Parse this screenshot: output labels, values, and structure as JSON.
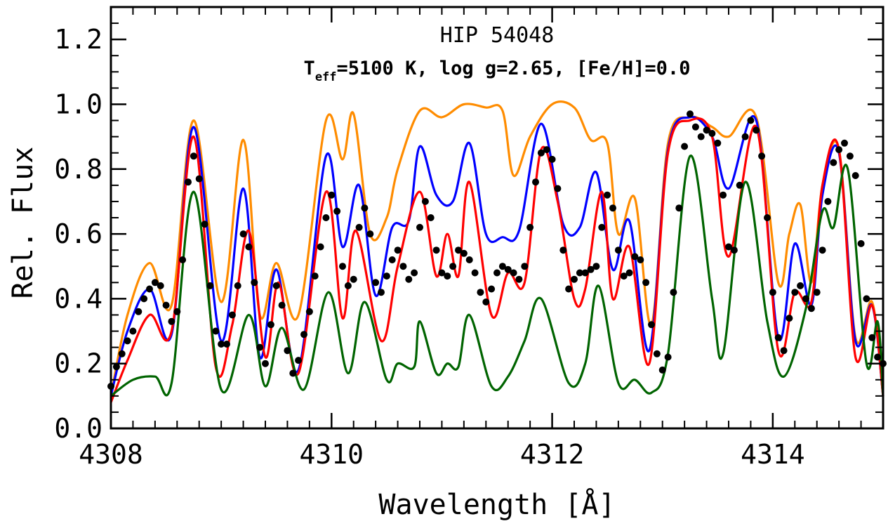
{
  "chart_data": {
    "type": "line",
    "title": "HIP 54048",
    "subtitle": {
      "t_main": "T",
      "t_sub": "eff",
      "rest": "=5100 K, log g=2.65, [Fe/H]=0.0"
    },
    "xlabel": "Wavelength [Å]",
    "ylabel": "Rel. Flux",
    "xlim": [
      4308,
      4315
    ],
    "ylim": [
      0.0,
      1.3
    ],
    "xticks": [
      4308,
      4310,
      4312,
      4314
    ],
    "xtick_labels": [
      "4308",
      "4310",
      "4312",
      "4314"
    ],
    "yticks": [
      0.0,
      0.2,
      0.4,
      0.6,
      0.8,
      1.0,
      1.2
    ],
    "ytick_labels": [
      "0.0",
      "0.2",
      "0.4",
      "0.6",
      "0.8",
      "1.0",
      "1.2"
    ],
    "grid": false,
    "colors": {
      "orange": "#ff8c00",
      "blue": "#0000ff",
      "red": "#ff0000",
      "green": "#006400",
      "observed": "#000000"
    },
    "series": [
      {
        "color": "orange",
        "x": [
          4308.0,
          4308.15,
          4308.35,
          4308.55,
          4308.75,
          4309.0,
          4309.2,
          4309.35,
          4309.5,
          4309.7,
          4309.95,
          4310.1,
          4310.2,
          4310.35,
          4310.5,
          4310.6,
          4310.8,
          4311.0,
          4311.2,
          4311.4,
          4311.55,
          4311.65,
          4311.8,
          4312.0,
          4312.2,
          4312.35,
          4312.5,
          4312.6,
          4312.75,
          4312.9,
          4313.05,
          4313.25,
          4313.45,
          4313.6,
          4313.85,
          4314.05,
          4314.15,
          4314.25,
          4314.35,
          4314.45,
          4314.6,
          4314.75,
          4314.9,
          4315.0
        ],
        "y": [
          0.1,
          0.35,
          0.51,
          0.38,
          0.95,
          0.39,
          0.89,
          0.35,
          0.51,
          0.35,
          0.95,
          0.83,
          0.97,
          0.6,
          0.65,
          0.8,
          0.98,
          0.96,
          1.0,
          0.99,
          0.98,
          0.78,
          0.9,
          1.0,
          0.99,
          0.89,
          0.88,
          0.6,
          0.71,
          0.32,
          0.88,
          0.96,
          0.93,
          0.9,
          0.96,
          0.45,
          0.6,
          0.69,
          0.45,
          0.75,
          0.86,
          0.28,
          0.39,
          0.1
        ]
      },
      {
        "color": "blue",
        "x": [
          4308.0,
          4308.15,
          4308.35,
          4308.55,
          4308.75,
          4309.0,
          4309.2,
          4309.35,
          4309.5,
          4309.7,
          4309.95,
          4310.1,
          4310.25,
          4310.4,
          4310.55,
          4310.7,
          4310.8,
          4310.95,
          4311.1,
          4311.25,
          4311.4,
          4311.55,
          4311.7,
          4311.9,
          4312.1,
          4312.25,
          4312.4,
          4312.55,
          4312.7,
          4312.88,
          4313.05,
          4313.25,
          4313.45,
          4313.6,
          4313.85,
          4314.05,
          4314.2,
          4314.35,
          4314.45,
          4314.6,
          4314.75,
          4314.9,
          4315.0
        ],
        "y": [
          0.1,
          0.3,
          0.43,
          0.29,
          0.93,
          0.27,
          0.74,
          0.22,
          0.49,
          0.18,
          0.84,
          0.56,
          0.75,
          0.41,
          0.62,
          0.64,
          0.87,
          0.72,
          0.7,
          0.88,
          0.6,
          0.59,
          0.61,
          0.94,
          0.63,
          0.62,
          0.79,
          0.49,
          0.64,
          0.24,
          0.86,
          0.96,
          0.9,
          0.74,
          0.95,
          0.28,
          0.57,
          0.38,
          0.72,
          0.85,
          0.27,
          0.38,
          0.1
        ]
      },
      {
        "color": "red",
        "x": [
          4308.0,
          4308.15,
          4308.35,
          4308.55,
          4308.75,
          4308.95,
          4309.1,
          4309.25,
          4309.4,
          4309.52,
          4309.7,
          4309.95,
          4310.1,
          4310.22,
          4310.45,
          4310.6,
          4310.8,
          4310.95,
          4311.05,
          4311.15,
          4311.25,
          4311.45,
          4311.6,
          4311.75,
          4311.9,
          4312.05,
          4312.2,
          4312.3,
          4312.45,
          4312.55,
          4312.7,
          4312.88,
          4313.05,
          4313.25,
          4313.45,
          4313.6,
          4313.85,
          4314.05,
          4314.2,
          4314.35,
          4314.45,
          4314.6,
          4314.75,
          4314.9,
          4315.0
        ],
        "y": [
          0.08,
          0.21,
          0.35,
          0.3,
          0.9,
          0.19,
          0.32,
          0.61,
          0.22,
          0.45,
          0.17,
          0.73,
          0.34,
          0.61,
          0.27,
          0.5,
          0.73,
          0.47,
          0.6,
          0.47,
          0.76,
          0.35,
          0.48,
          0.45,
          0.86,
          0.7,
          0.4,
          0.43,
          0.73,
          0.4,
          0.56,
          0.2,
          0.85,
          0.95,
          0.9,
          0.53,
          0.93,
          0.24,
          0.42,
          0.39,
          0.75,
          0.86,
          0.22,
          0.38,
          0.1
        ]
      },
      {
        "color": "green",
        "x": [
          4308.0,
          4308.2,
          4308.4,
          4308.55,
          4308.75,
          4309.0,
          4309.25,
          4309.4,
          4309.55,
          4309.75,
          4309.97,
          4310.15,
          4310.3,
          4310.5,
          4310.6,
          4310.75,
          4310.8,
          4310.95,
          4311.05,
          4311.15,
          4311.25,
          4311.45,
          4311.6,
          4311.75,
          4311.9,
          4312.15,
          4312.3,
          4312.42,
          4312.6,
          4312.75,
          4312.9,
          4313.05,
          4313.25,
          4313.45,
          4313.55,
          4313.75,
          4313.95,
          4314.1,
          4314.3,
          4314.45,
          4314.55,
          4314.68,
          4314.85,
          4314.95,
          4315.0
        ],
        "y": [
          0.1,
          0.15,
          0.16,
          0.14,
          0.73,
          0.12,
          0.35,
          0.13,
          0.31,
          0.12,
          0.42,
          0.17,
          0.39,
          0.15,
          0.2,
          0.19,
          0.33,
          0.17,
          0.2,
          0.19,
          0.35,
          0.13,
          0.16,
          0.27,
          0.4,
          0.14,
          0.2,
          0.44,
          0.14,
          0.15,
          0.11,
          0.23,
          0.84,
          0.4,
          0.23,
          0.76,
          0.33,
          0.16,
          0.37,
          0.67,
          0.62,
          0.8,
          0.2,
          0.33,
          0.1
        ]
      }
    ],
    "observed": {
      "color": "observed",
      "x": [
        4308.0,
        4308.05,
        4308.1,
        4308.15,
        4308.2,
        4308.25,
        4308.3,
        4308.35,
        4308.4,
        4308.45,
        4308.5,
        4308.55,
        4308.6,
        4308.65,
        4308.7,
        4308.75,
        4308.8,
        4308.85,
        4308.9,
        4308.95,
        4309.0,
        4309.05,
        4309.1,
        4309.15,
        4309.2,
        4309.25,
        4309.3,
        4309.35,
        4309.4,
        4309.45,
        4309.5,
        4309.55,
        4309.6,
        4309.65,
        4309.7,
        4309.75,
        4309.8,
        4309.85,
        4309.9,
        4309.95,
        4310.0,
        4310.05,
        4310.1,
        4310.15,
        4310.2,
        4310.25,
        4310.3,
        4310.35,
        4310.4,
        4310.45,
        4310.5,
        4310.55,
        4310.6,
        4310.65,
        4310.7,
        4310.75,
        4310.8,
        4310.85,
        4310.9,
        4310.95,
        4311.0,
        4311.05,
        4311.1,
        4311.15,
        4311.2,
        4311.25,
        4311.3,
        4311.35,
        4311.4,
        4311.45,
        4311.5,
        4311.55,
        4311.6,
        4311.65,
        4311.7,
        4311.75,
        4311.8,
        4311.85,
        4311.9,
        4311.95,
        4312.0,
        4312.05,
        4312.1,
        4312.15,
        4312.2,
        4312.25,
        4312.3,
        4312.35,
        4312.4,
        4312.45,
        4312.5,
        4312.55,
        4312.6,
        4312.65,
        4312.7,
        4312.75,
        4312.8,
        4312.85,
        4312.9,
        4312.95,
        4313.0,
        4313.05,
        4313.1,
        4313.15,
        4313.2,
        4313.25,
        4313.3,
        4313.35,
        4313.4,
        4313.45,
        4313.5,
        4313.55,
        4313.6,
        4313.65,
        4313.7,
        4313.75,
        4313.8,
        4313.85,
        4313.9,
        4313.95,
        4314.0,
        4314.05,
        4314.1,
        4314.15,
        4314.2,
        4314.25,
        4314.3,
        4314.35,
        4314.4,
        4314.45,
        4314.5,
        4314.55,
        4314.6,
        4314.65,
        4314.7,
        4314.75,
        4314.8,
        4314.85,
        4314.9,
        4314.95,
        4315.0
      ],
      "y": [
        0.13,
        0.19,
        0.23,
        0.27,
        0.3,
        0.36,
        0.4,
        0.43,
        0.45,
        0.44,
        0.38,
        0.33,
        0.36,
        0.52,
        0.76,
        0.84,
        0.77,
        0.63,
        0.44,
        0.3,
        0.26,
        0.26,
        0.35,
        0.44,
        0.6,
        0.56,
        0.45,
        0.25,
        0.2,
        0.32,
        0.44,
        0.38,
        0.24,
        0.17,
        0.21,
        0.29,
        0.36,
        0.47,
        0.56,
        0.65,
        0.72,
        0.67,
        0.5,
        0.44,
        0.46,
        0.62,
        0.68,
        0.6,
        0.45,
        0.42,
        0.47,
        0.52,
        0.55,
        0.5,
        0.46,
        0.48,
        0.62,
        0.7,
        0.65,
        0.55,
        0.48,
        0.47,
        0.5,
        0.55,
        0.54,
        0.52,
        0.48,
        0.42,
        0.39,
        0.43,
        0.48,
        0.5,
        0.49,
        0.48,
        0.46,
        0.5,
        0.62,
        0.76,
        0.85,
        0.86,
        0.83,
        0.74,
        0.55,
        0.43,
        0.46,
        0.48,
        0.48,
        0.49,
        0.5,
        0.62,
        0.72,
        0.68,
        0.55,
        0.47,
        0.48,
        0.53,
        0.52,
        0.45,
        0.32,
        0.23,
        0.18,
        0.22,
        0.42,
        0.68,
        0.87,
        0.97,
        0.93,
        0.9,
        0.92,
        0.91,
        0.88,
        0.72,
        0.56,
        0.55,
        0.75,
        0.9,
        0.95,
        0.92,
        0.84,
        0.65,
        0.42,
        0.28,
        0.24,
        0.34,
        0.42,
        0.44,
        0.4,
        0.37,
        0.42,
        0.55,
        0.7,
        0.82,
        0.86,
        0.88,
        0.84,
        0.78,
        0.57,
        0.4,
        0.28,
        0.22,
        0.2
      ],
      "marker": "circle"
    }
  }
}
